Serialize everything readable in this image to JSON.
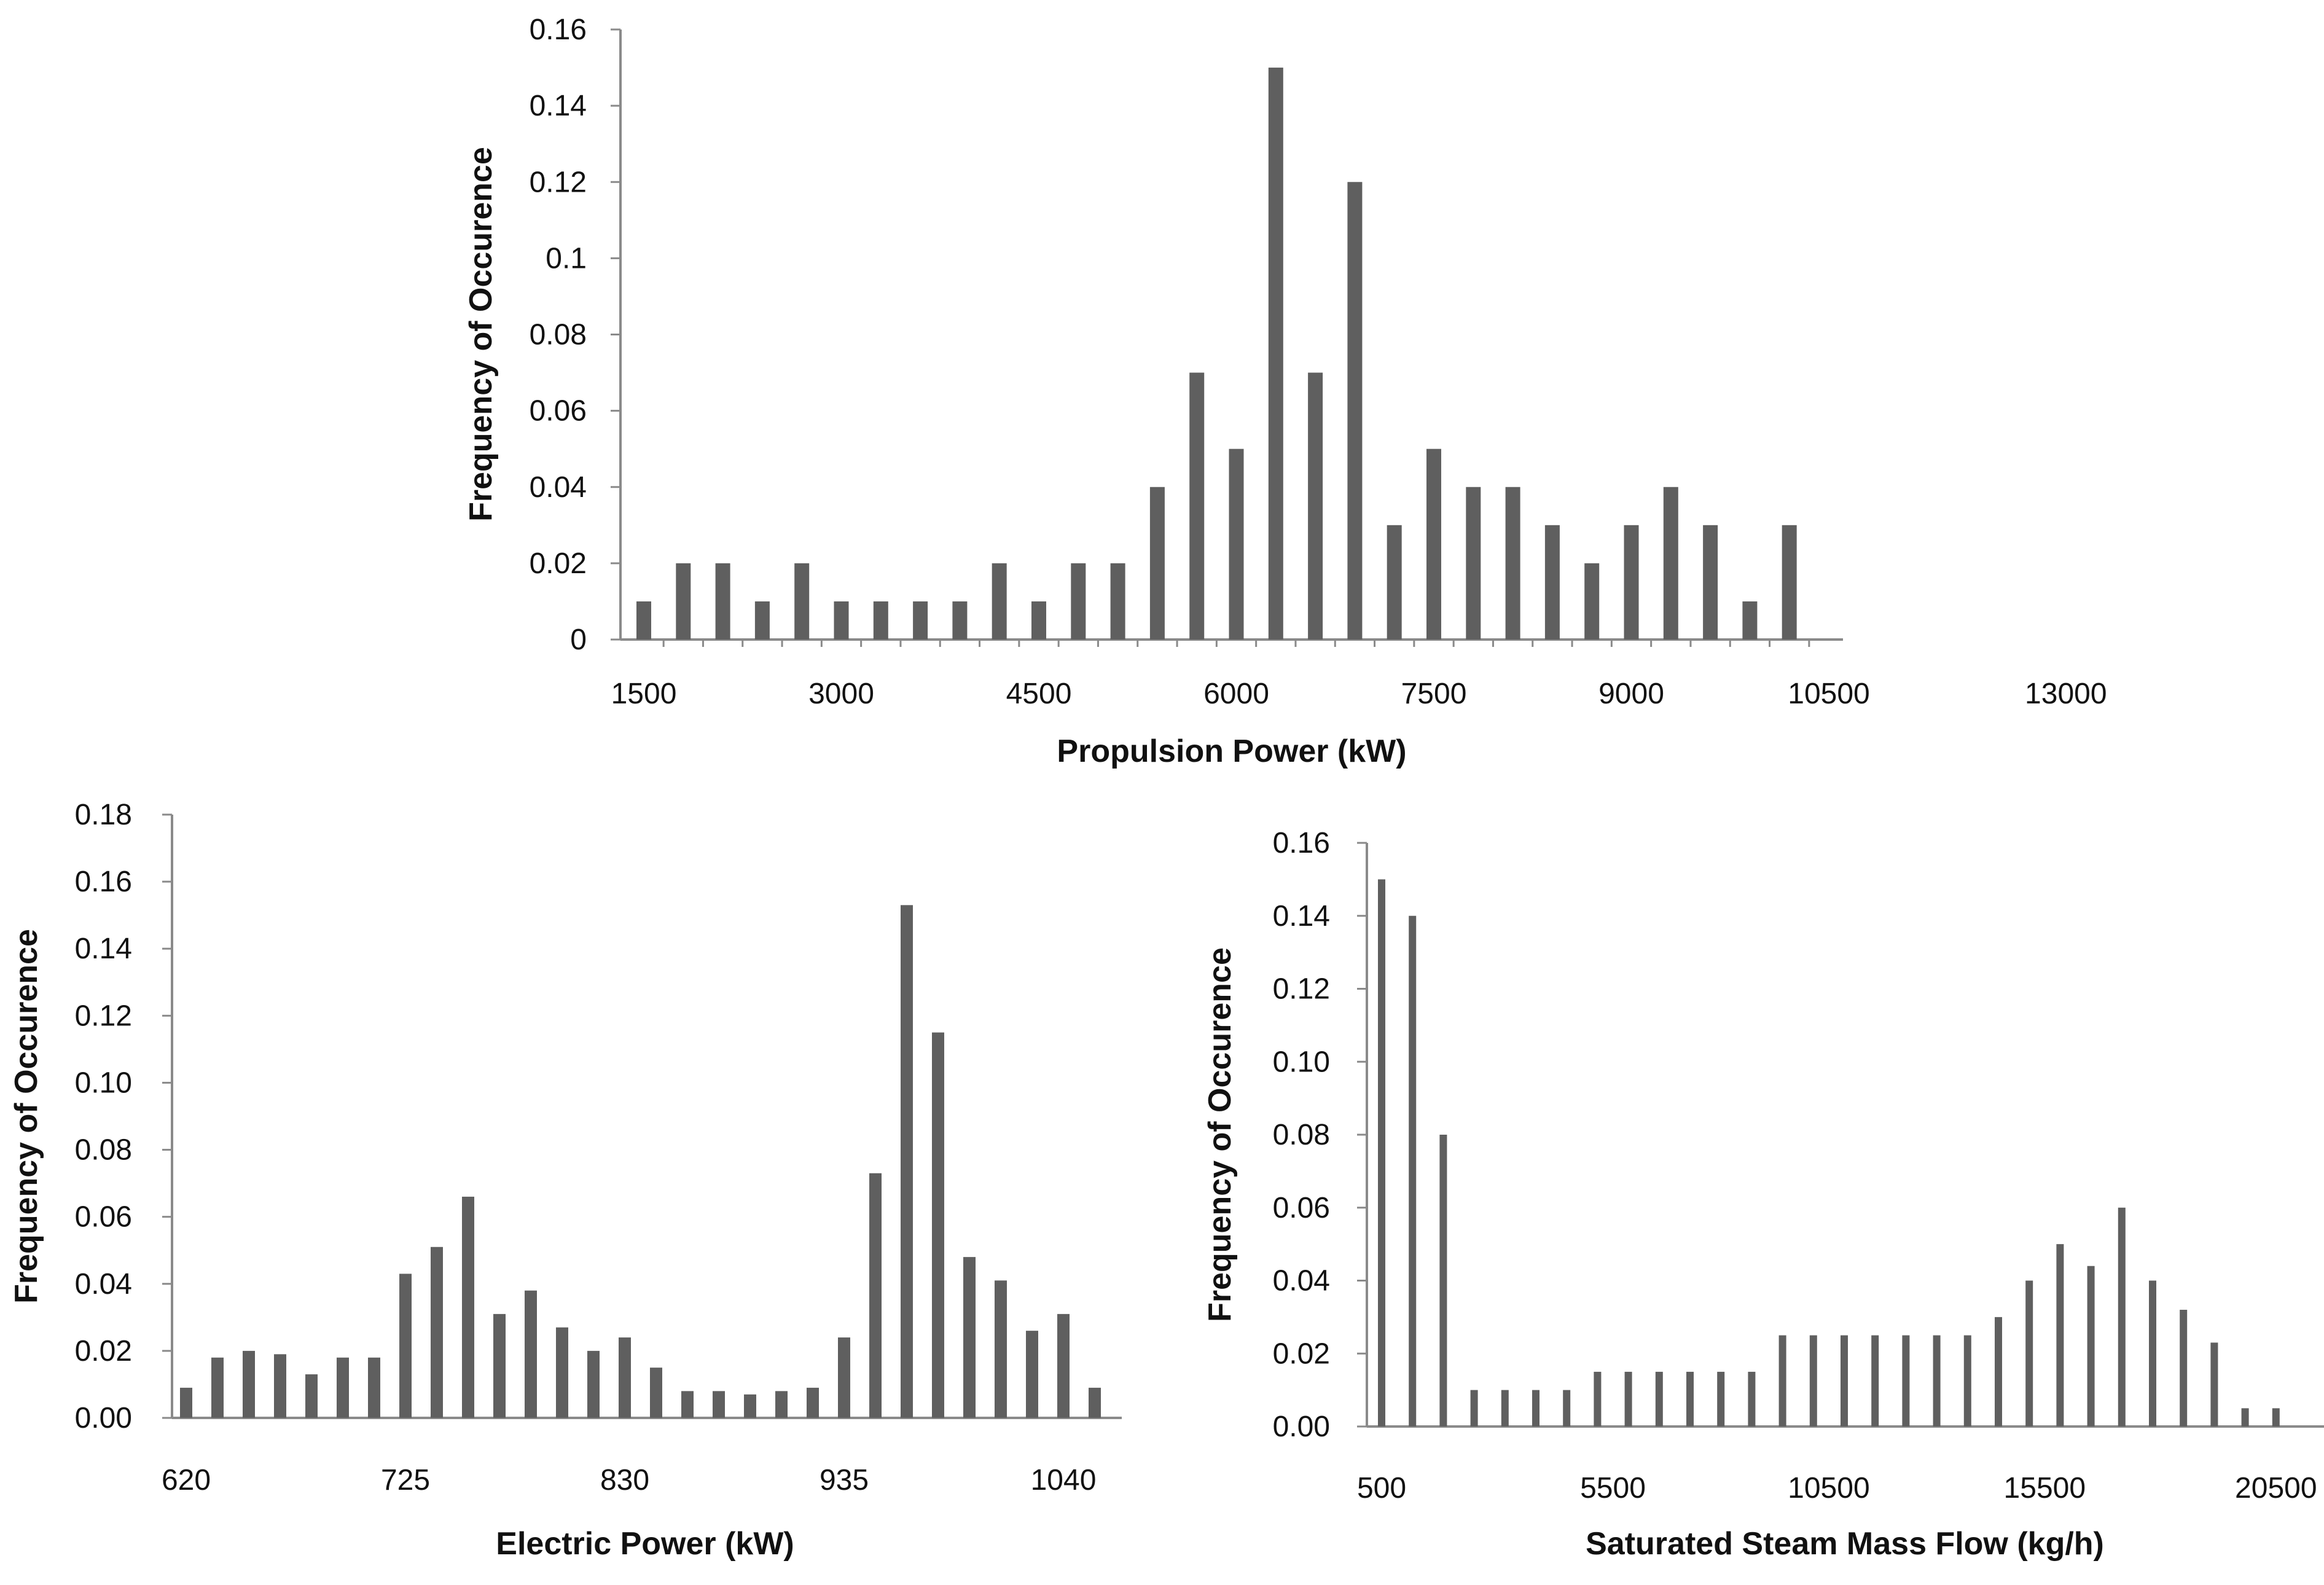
{
  "chart_data": [
    {
      "id": "propulsion",
      "type": "bar",
      "title": "",
      "xlabel": "Propulsion Power (kW)",
      "ylabel": "Frequency of Occurence",
      "ylim": [
        0,
        0.16
      ],
      "yticks": [
        "0",
        "0.02",
        "0.04",
        "0.06",
        "0.08",
        "0.1",
        "0.12",
        "0.14",
        "0.16"
      ],
      "xticks": [
        {
          "label": "1500",
          "index": 0
        },
        {
          "label": "3000",
          "index": 5
        },
        {
          "label": "4500",
          "index": 10
        },
        {
          "label": "6000",
          "index": 15
        },
        {
          "label": "7500",
          "index": 20
        },
        {
          "label": "9000",
          "index": 25
        },
        {
          "label": "10500",
          "index": 30
        },
        {
          "label": "13000",
          "index": 36
        }
      ],
      "values": [
        0.01,
        0.02,
        0.02,
        0.01,
        0.02,
        0.01,
        0.01,
        0.01,
        0.01,
        0.02,
        0.01,
        0.02,
        0.02,
        0.04,
        0.07,
        0.05,
        0.15,
        0.07,
        0.12,
        0.03,
        0.05,
        0.04,
        0.04,
        0.03,
        0.02,
        0.03,
        0.04,
        0.03,
        0.01,
        0.03
      ]
    },
    {
      "id": "electric",
      "type": "bar",
      "title": "",
      "xlabel": "Electric Power (kW)",
      "ylabel": "Frequency of Occurence",
      "ylim": [
        0,
        0.18
      ],
      "yticks": [
        "0.00",
        "0.02",
        "0.04",
        "0.06",
        "0.08",
        "0.10",
        "0.12",
        "0.14",
        "0.16",
        "0.18"
      ],
      "xticks": [
        {
          "label": "620",
          "index": 0
        },
        {
          "label": "725",
          "index": 7
        },
        {
          "label": "830",
          "index": 14
        },
        {
          "label": "935",
          "index": 21
        },
        {
          "label": "1040",
          "index": 28
        }
      ],
      "values": [
        0.009,
        0.018,
        0.02,
        0.019,
        0.013,
        0.018,
        0.018,
        0.043,
        0.051,
        0.066,
        0.031,
        0.038,
        0.027,
        0.02,
        0.024,
        0.015,
        0.008,
        0.008,
        0.007,
        0.008,
        0.009,
        0.024,
        0.073,
        0.153,
        0.115,
        0.048,
        0.041,
        0.026,
        0.031,
        0.009
      ]
    },
    {
      "id": "steam",
      "type": "bar",
      "title": "",
      "xlabel": "Saturated Steam Mass Flow  (kg/h)",
      "ylabel": "Frequency of Occurence",
      "ylim": [
        0,
        0.16
      ],
      "yticks": [
        "0.00",
        "0.02",
        "0.04",
        "0.06",
        "0.08",
        "0.10",
        "0.12",
        "0.14",
        "0.16"
      ],
      "xticks": [
        {
          "label": "500",
          "index": 0
        },
        {
          "label": "5500",
          "index": 7.5
        },
        {
          "label": "10500",
          "index": 14.5
        },
        {
          "label": "15500",
          "index": 21.5
        },
        {
          "label": "20500",
          "index": 29
        }
      ],
      "values": [
        0.15,
        0.14,
        0.08,
        0.01,
        0.01,
        0.01,
        0.01,
        0.015,
        0.015,
        0.015,
        0.015,
        0.015,
        0.015,
        0.025,
        0.025,
        0.025,
        0.025,
        0.025,
        0.025,
        0.025,
        0.03,
        0.04,
        0.05,
        0.044,
        0.06,
        0.04,
        0.032,
        0.023,
        0.005,
        0.005
      ]
    }
  ]
}
